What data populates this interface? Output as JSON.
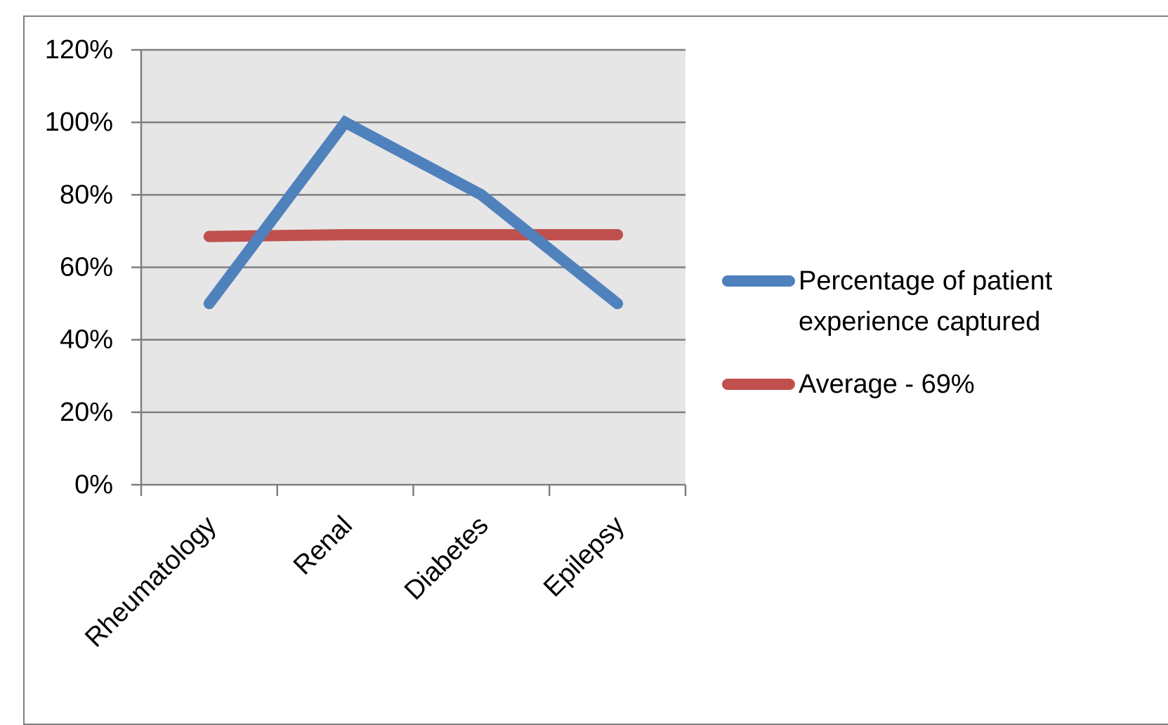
{
  "chart_data": {
    "type": "line",
    "categories": [
      "Rheumatology",
      "Renal",
      "Diabetes",
      "Epilepsy"
    ],
    "y_ticks": [
      "0%",
      "20%",
      "40%",
      "60%",
      "80%",
      "100%",
      "120%"
    ],
    "ylim": [
      0,
      1.2
    ],
    "y_step": 0.2,
    "grid": true,
    "legend_position": "right",
    "series": [
      {
        "name_lines": [
          "Percentage of patient",
          "experience captured"
        ],
        "color": "#4f81bd",
        "values": [
          0.5,
          1.0,
          0.8,
          0.5
        ]
      },
      {
        "name_lines": [
          "Average - 69%"
        ],
        "color": "#c0504d",
        "values": [
          0.685,
          0.69,
          0.69,
          0.69
        ]
      }
    ],
    "plot_background": "#e6e6e6",
    "gridline_color": "#7f7f7f"
  }
}
